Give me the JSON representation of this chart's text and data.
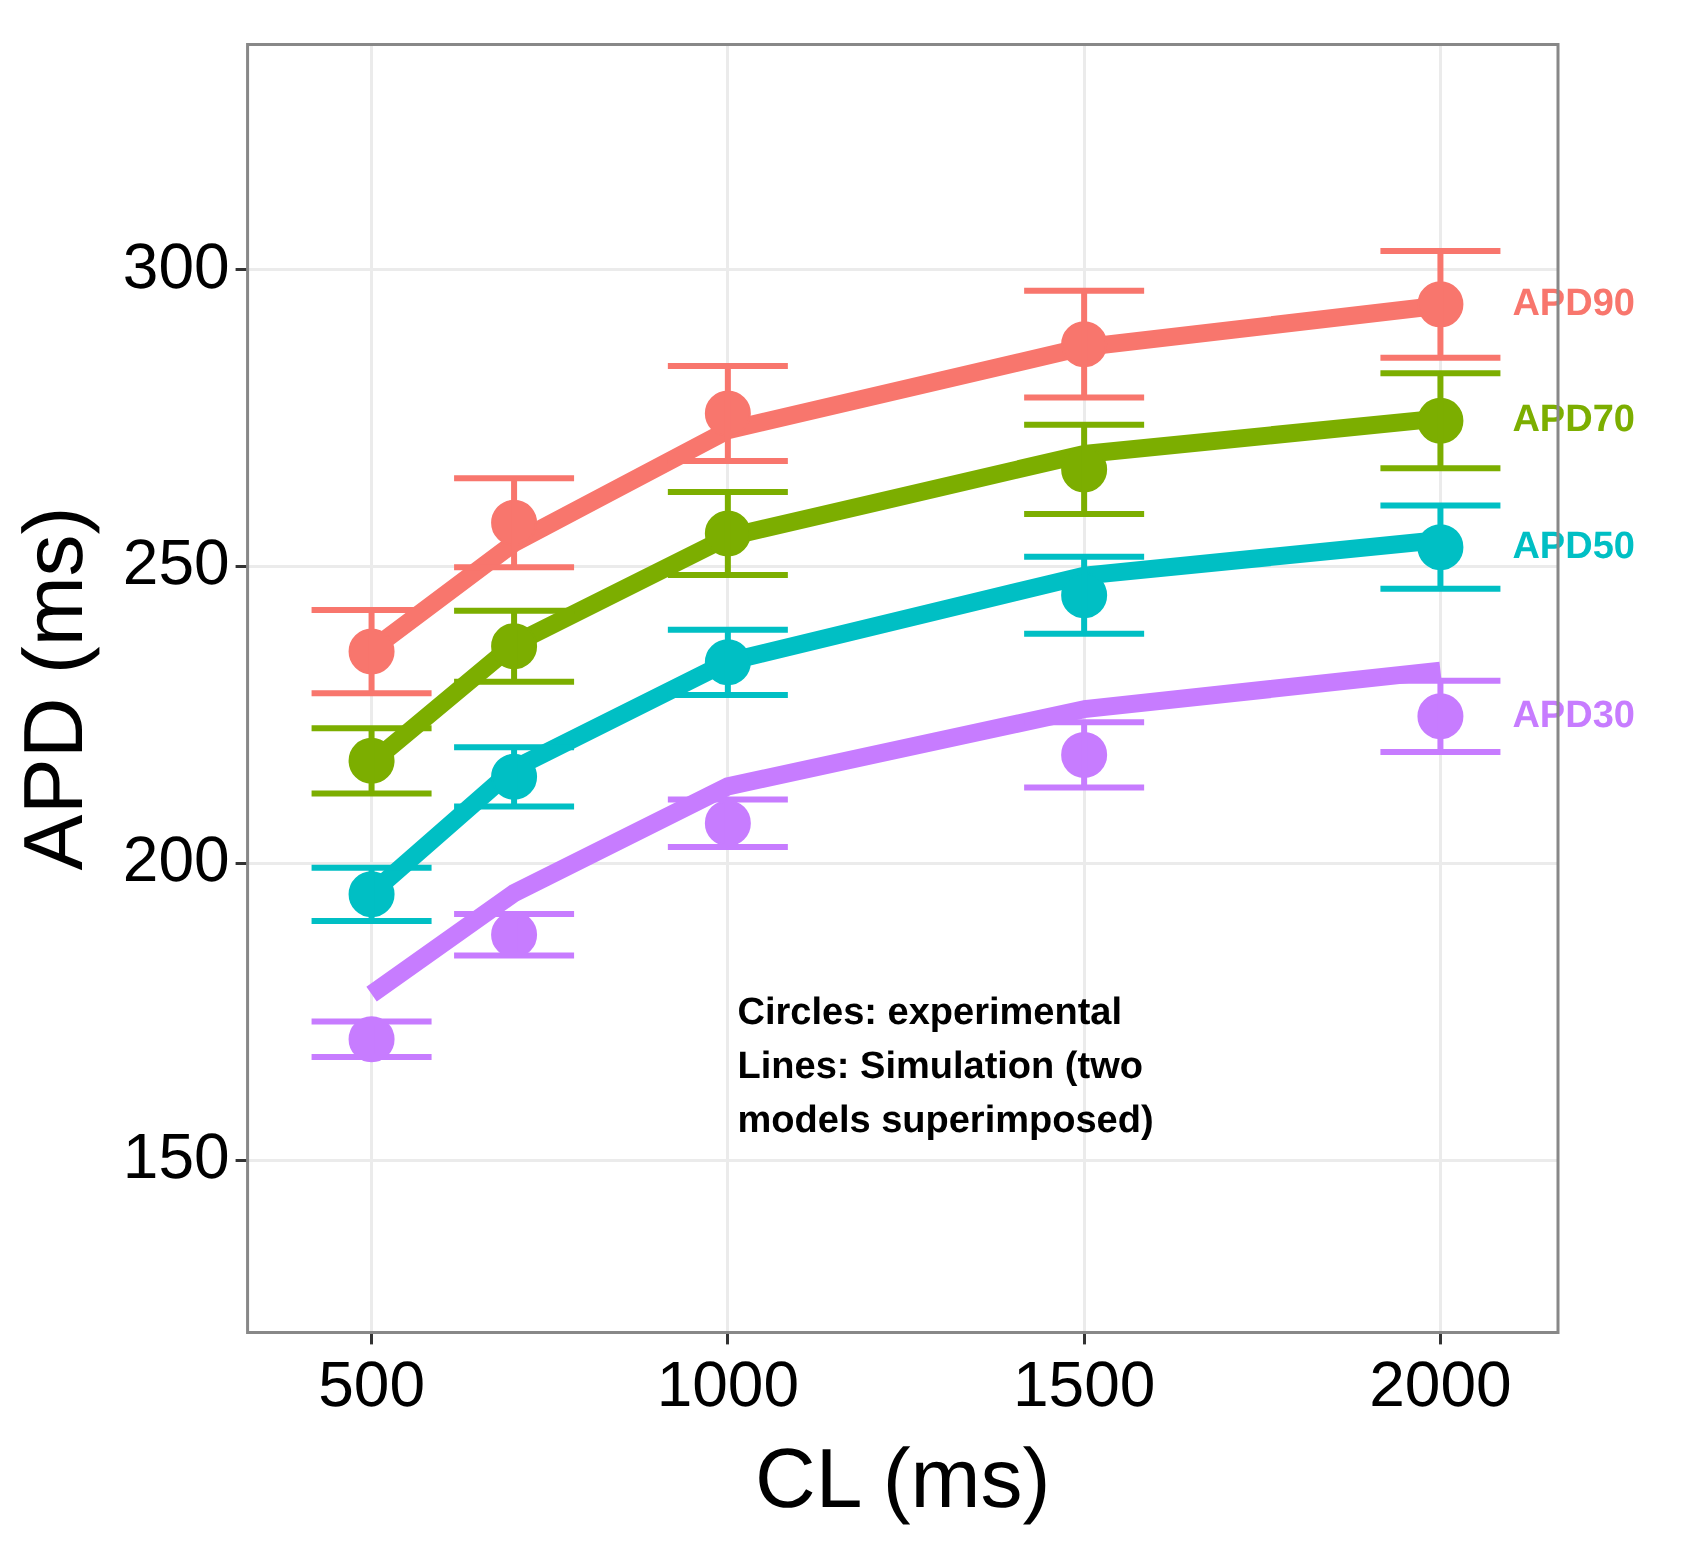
{
  "chart_data": {
    "type": "scatter",
    "xlabel": "CL (ms)",
    "ylabel": "APD (ms)",
    "x": [
      500,
      700,
      1000,
      1500,
      2000
    ],
    "xlim": [
      326,
      2165
    ],
    "ylim": [
      121,
      338
    ],
    "xticks": [
      500,
      1000,
      1500,
      2000
    ],
    "yticks": [
      150,
      200,
      250,
      300
    ],
    "grid": true,
    "marker": "circle",
    "series": [
      {
        "type": "line",
        "marker": "none",
        "color": "#f8766d",
        "values": [
          236,
          254,
          273,
          287,
          294
        ]
      },
      {
        "type": "line",
        "marker": "none",
        "color": "#7cae00",
        "values": [
          217,
          237,
          255,
          269,
          275
        ]
      },
      {
        "type": "line",
        "marker": "none",
        "color": "#00bfc4",
        "values": [
          195,
          216,
          234,
          248.5,
          254.5
        ]
      },
      {
        "type": "line",
        "marker": "none",
        "color": "#c77cff",
        "values": [
          178,
          195,
          213,
          226,
          232.5
        ]
      },
      {
        "name": "APD90",
        "color": "#f8766d",
        "values": [
          235.7,
          257.4,
          275.8,
          287.5,
          294.2
        ],
        "errors": [
          7,
          7.5,
          8,
          9,
          9
        ]
      },
      {
        "name": "APD70",
        "color": "#7cae00",
        "values": [
          217.3,
          236.6,
          255.6,
          266.4,
          274.6
        ],
        "errors": [
          5.5,
          6,
          7,
          7.5,
          8
        ]
      },
      {
        "name": "APD50",
        "color": "#00bfc4",
        "values": [
          194.8,
          214.6,
          233.9,
          245.2,
          253.3
        ],
        "errors": [
          4.5,
          5,
          5.5,
          6.5,
          7
        ]
      },
      {
        "name": "APD30",
        "color": "#c77cff",
        "values": [
          170.4,
          188,
          206.8,
          218.3,
          224.8
        ],
        "errors": [
          3,
          3.5,
          4,
          5.5,
          6
        ]
      }
    ],
    "annotations": [
      "Circles: experimental",
      "Lines: Simulation (two models superimposed)"
    ]
  }
}
